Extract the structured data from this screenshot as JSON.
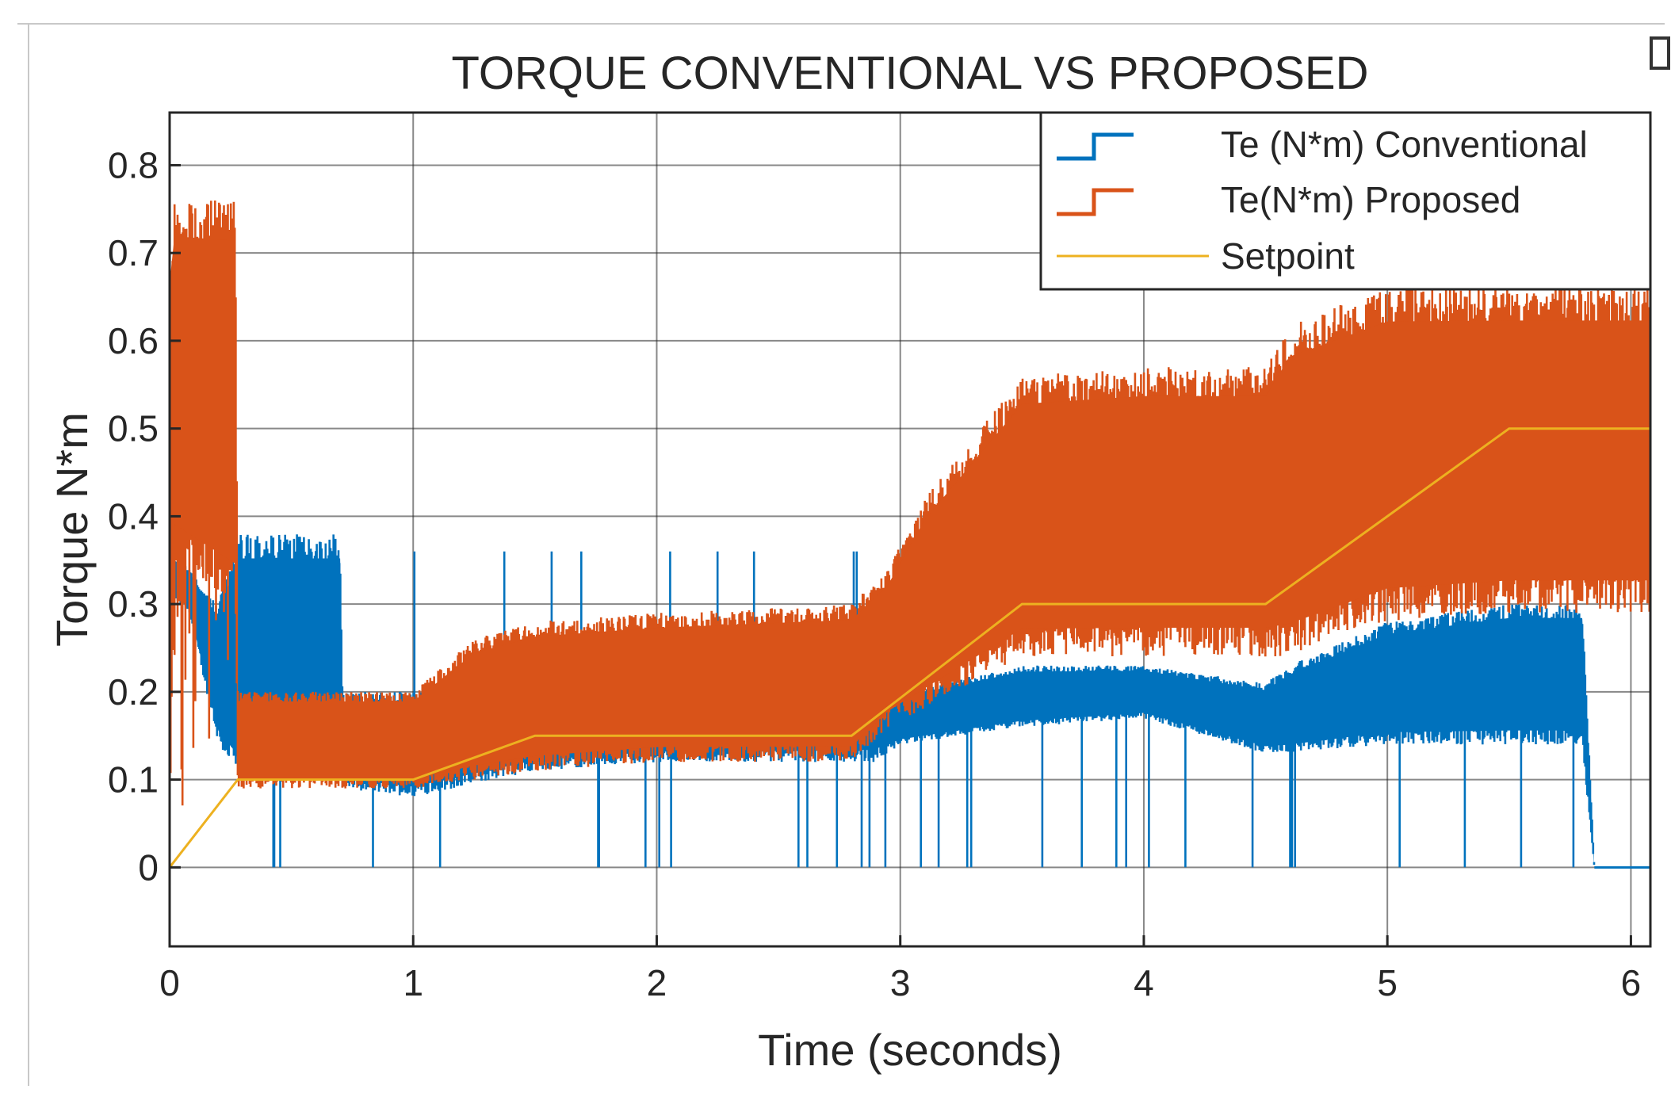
{
  "chart_data": {
    "type": "line",
    "title": "TORQUE CONVENTIONAL VS PROPOSED",
    "xlabel": "Time (seconds)",
    "ylabel": "Torque N*m",
    "xlim": [
      0,
      6.08
    ],
    "ylim": [
      -0.09,
      0.86
    ],
    "xticks": [
      0,
      1,
      2,
      3,
      4,
      5,
      6
    ],
    "yticks": [
      0,
      0.1,
      0.2,
      0.3,
      0.4,
      0.5,
      0.6,
      0.7,
      0.8
    ],
    "xtick_labels": [
      "0",
      "1",
      "2",
      "3",
      "4",
      "5",
      "6"
    ],
    "ytick_labels": [
      "0",
      "0.1",
      "0.2",
      "0.3",
      "0.4",
      "0.5",
      "0.6",
      "0.7",
      "0.8"
    ],
    "grid": true,
    "legend_position": "top-right",
    "series": [
      {
        "name": "Te (N*m) Conventional",
        "color": "#0072BD",
        "style": "noisy-band",
        "band": {
          "x": [
            0,
            0.08,
            0.2,
            0.28,
            0.7,
            0.71,
            1.0,
            1.5,
            2.0,
            2.8,
            2.9,
            3.0,
            3.5,
            4.0,
            4.5,
            4.6,
            5.0,
            5.5,
            5.8,
            5.85,
            6.08
          ],
          "low": [
            0.31,
            0.29,
            0.14,
            0.1,
            0.1,
            0.09,
            0.08,
            0.11,
            0.12,
            0.12,
            0.12,
            0.14,
            0.16,
            0.17,
            0.13,
            0.13,
            0.14,
            0.14,
            0.14,
            0.0,
            0.0
          ],
          "high": [
            0.36,
            0.34,
            0.3,
            0.38,
            0.38,
            0.2,
            0.2,
            0.23,
            0.24,
            0.25,
            0.27,
            0.2,
            0.23,
            0.23,
            0.21,
            0.23,
            0.28,
            0.3,
            0.3,
            0.0,
            0.0
          ]
        }
      },
      {
        "name": "Te(N*m) Proposed",
        "color": "#D95319",
        "style": "noisy-band",
        "band": {
          "x": [
            0,
            0.02,
            0.27,
            0.28,
            1.0,
            1.25,
            1.5,
            2.0,
            2.8,
            2.95,
            3.1,
            3.5,
            4.0,
            4.5,
            4.6,
            5.0,
            5.5,
            6.08
          ],
          "low": [
            0.0,
            0.35,
            0.3,
            0.09,
            0.09,
            0.1,
            0.11,
            0.12,
            0.12,
            0.16,
            0.18,
            0.24,
            0.24,
            0.24,
            0.24,
            0.28,
            0.29,
            0.29
          ],
          "high": [
            0.74,
            0.76,
            0.76,
            0.2,
            0.2,
            0.26,
            0.28,
            0.29,
            0.3,
            0.34,
            0.42,
            0.56,
            0.57,
            0.57,
            0.62,
            0.66,
            0.66,
            0.66
          ]
        }
      },
      {
        "name": "Setpoint",
        "color": "#EDB120",
        "style": "line",
        "x": [
          0,
          0.28,
          1.0,
          1.5,
          2.8,
          3.5,
          4.5,
          5.5,
          6.08
        ],
        "y": [
          0,
          0.1,
          0.1,
          0.15,
          0.15,
          0.3,
          0.3,
          0.5,
          0.5
        ]
      }
    ]
  }
}
